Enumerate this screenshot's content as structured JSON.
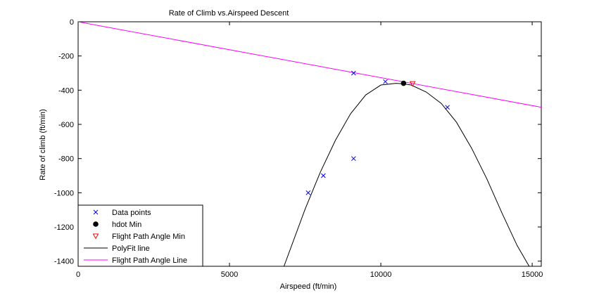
{
  "chart_data": {
    "type": "scatter",
    "title": "Rate of Climb vs.Airspeed Descent",
    "xlabel": "Airspeed (ft/min)",
    "ylabel": "Rate of climb (ft/min)",
    "xlim": [
      0,
      15300
    ],
    "ylim": [
      -1430,
      0
    ],
    "xticks": [
      0,
      5000,
      10000,
      15000
    ],
    "yticks": [
      0,
      -200,
      -400,
      -600,
      -800,
      -1000,
      -1200,
      -1400
    ],
    "xtick_labels": [
      "0",
      "5000",
      "10000",
      "15000"
    ],
    "ytick_labels": [
      "0",
      "-200",
      "-400",
      "-600",
      "-800",
      "-1000",
      "-1200",
      "-1400"
    ],
    "grid": false,
    "legend_position": "bottom-left",
    "series": [
      {
        "name": "Data points",
        "type": "scatter",
        "marker": "x",
        "color": "#0000ff",
        "x": [
          7600,
          8100,
          9100,
          9100,
          10150,
          12200
        ],
        "y": [
          -1000,
          -900,
          -800,
          -300,
          -350,
          -500
        ]
      },
      {
        "name": "hdot Min",
        "type": "scatter",
        "marker": "filled-circle",
        "color": "#000000",
        "x": [
          10750
        ],
        "y": [
          -360
        ]
      },
      {
        "name": "Flight Path Angle Min",
        "type": "scatter",
        "marker": "triangle-down",
        "color": "#ff0000",
        "x": [
          11050
        ],
        "y": [
          -362
        ]
      },
      {
        "name": "PolyFit line",
        "type": "line",
        "color": "#000000",
        "x": [
          6800,
          7500,
          8000,
          8500,
          9000,
          9500,
          10000,
          10500,
          10750,
          11000,
          11500,
          12000,
          12500,
          13000,
          13500,
          14000,
          14500,
          14900
        ],
        "y": [
          -1430,
          -1095,
          -880,
          -693,
          -538,
          -428,
          -370,
          -360,
          -363,
          -370,
          -411,
          -478,
          -588,
          -740,
          -918,
          -1118,
          -1308,
          -1430
        ]
      },
      {
        "name": "Flight Path Angle Line",
        "type": "line",
        "color": "#ff00ff",
        "x": [
          0,
          15300
        ],
        "y": [
          0,
          -500
        ]
      }
    ]
  }
}
